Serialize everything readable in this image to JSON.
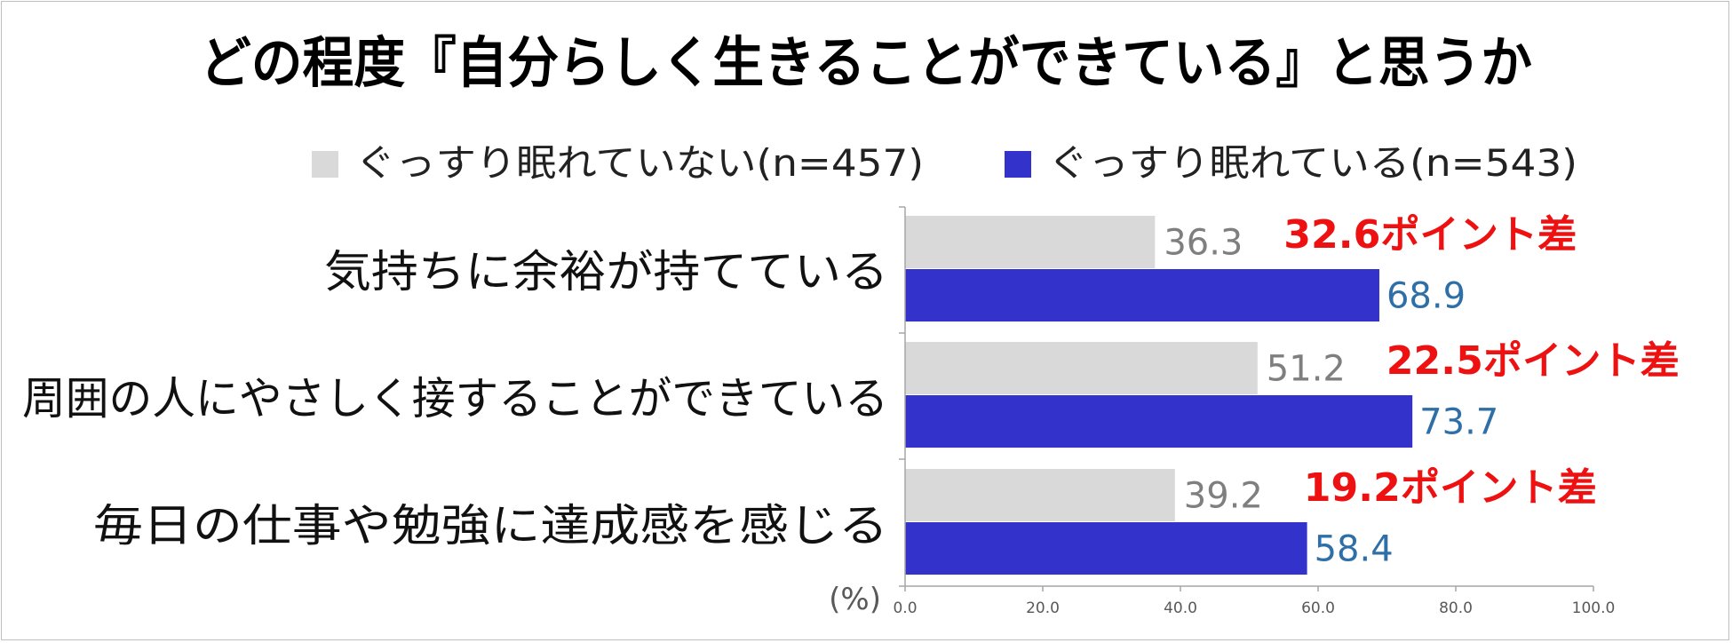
{
  "chart_data": {
    "type": "bar",
    "orientation": "horizontal",
    "title": "どの程度『自分らしく生きることができている』と思うか",
    "categories": [
      "気持ちに余裕が持てている",
      "周囲の人にやさしく接することができている",
      "毎日の仕事や勉強に達成感を感じる"
    ],
    "series": [
      {
        "name": "ぐっすり眠れていない(n=457)",
        "color": "#d9d9d9",
        "values": [
          36.3,
          51.2,
          39.2
        ]
      },
      {
        "name": "ぐっすり眠れている(n=543)",
        "color": "#3333cc",
        "values": [
          68.9,
          73.7,
          58.4
        ]
      }
    ],
    "value_labels": {
      "series_a": [
        "36.3",
        "51.2",
        "39.2"
      ],
      "series_b": [
        "68.9",
        "73.7",
        "58.4"
      ]
    },
    "annotations": [
      "32.6ポイント差",
      "22.5ポイント差",
      "19.2ポイント差"
    ],
    "annotation_color": "#ee1111",
    "xlim": [
      0,
      100
    ],
    "x_ticks": [
      "0.0",
      "20.0",
      "40.0",
      "60.0",
      "80.0",
      "100.0"
    ],
    "unit_label": "(%)",
    "legend_position": "top",
    "grid": false
  }
}
